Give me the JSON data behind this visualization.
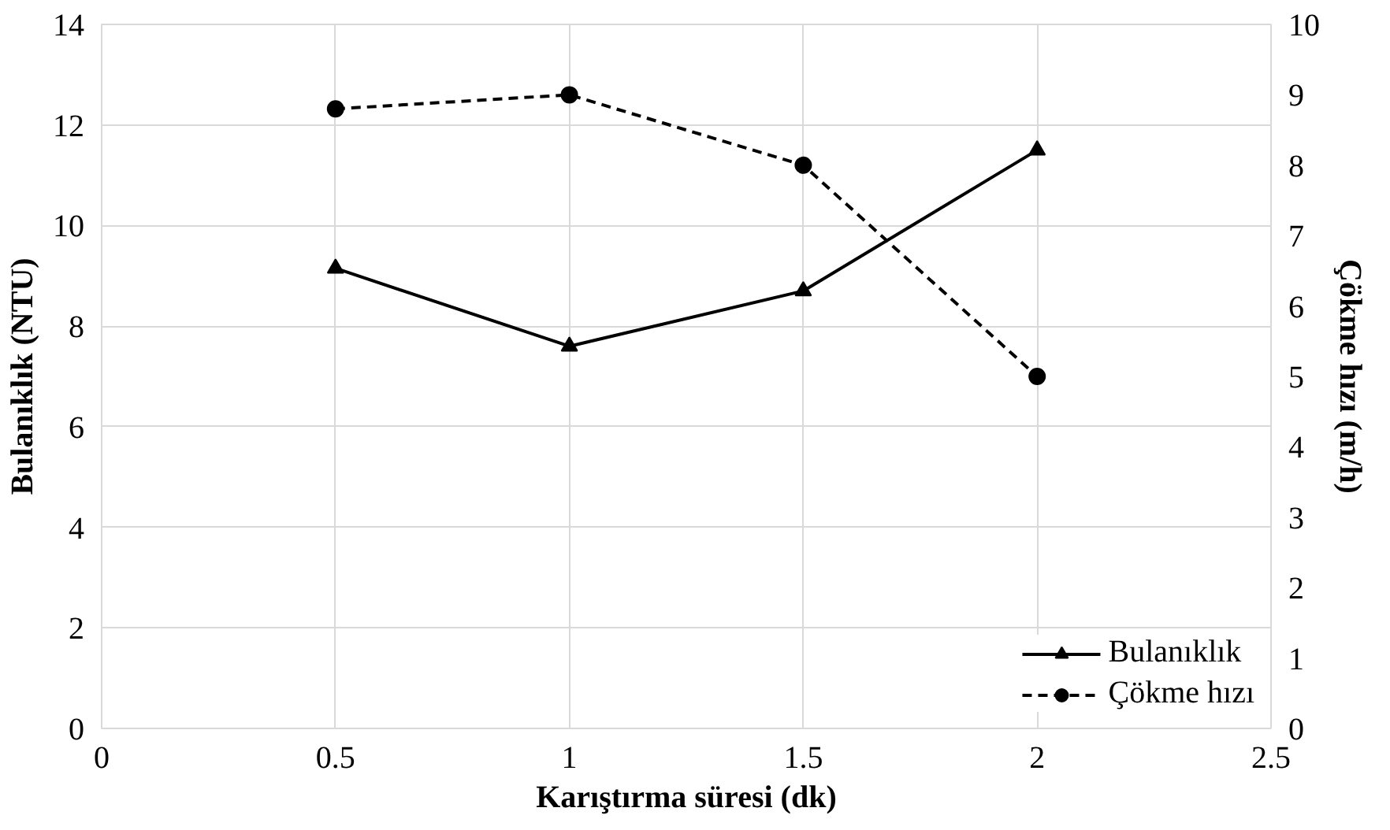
{
  "chart_data": {
    "type": "line",
    "xlabel": "Karıştırma süresi (dk)",
    "ylabel": "Bulanıklık (NTU)",
    "y2label": "Çökme hızı (m/h)",
    "x": [
      0.5,
      1,
      1.5,
      2
    ],
    "series": [
      {
        "name": "Bulanıklık",
        "color": "#000000",
        "values": [
          9.15,
          7.6,
          8.7,
          11.5
        ],
        "marker": "triangle",
        "line_style": "solid"
      },
      {
        "name": "Çökme hızı",
        "color": "#000000",
        "values": [
          8.8,
          9.0,
          8.0,
          5.0
        ],
        "marker": "circle",
        "line_style": "dashed",
        "axis": "y2"
      }
    ],
    "xlim": [
      0,
      2.5
    ],
    "xticks": [
      0,
      0.5,
      1,
      1.5,
      2,
      2.5
    ],
    "ylim": [
      0,
      14
    ],
    "yticks": [
      0,
      2,
      4,
      6,
      8,
      10,
      12,
      14
    ],
    "y2lim": [
      0,
      10
    ],
    "y2ticks": [
      0,
      1,
      2,
      3,
      4,
      5,
      6,
      7,
      8,
      9,
      10
    ],
    "grid": true,
    "legend": "bottom right"
  }
}
